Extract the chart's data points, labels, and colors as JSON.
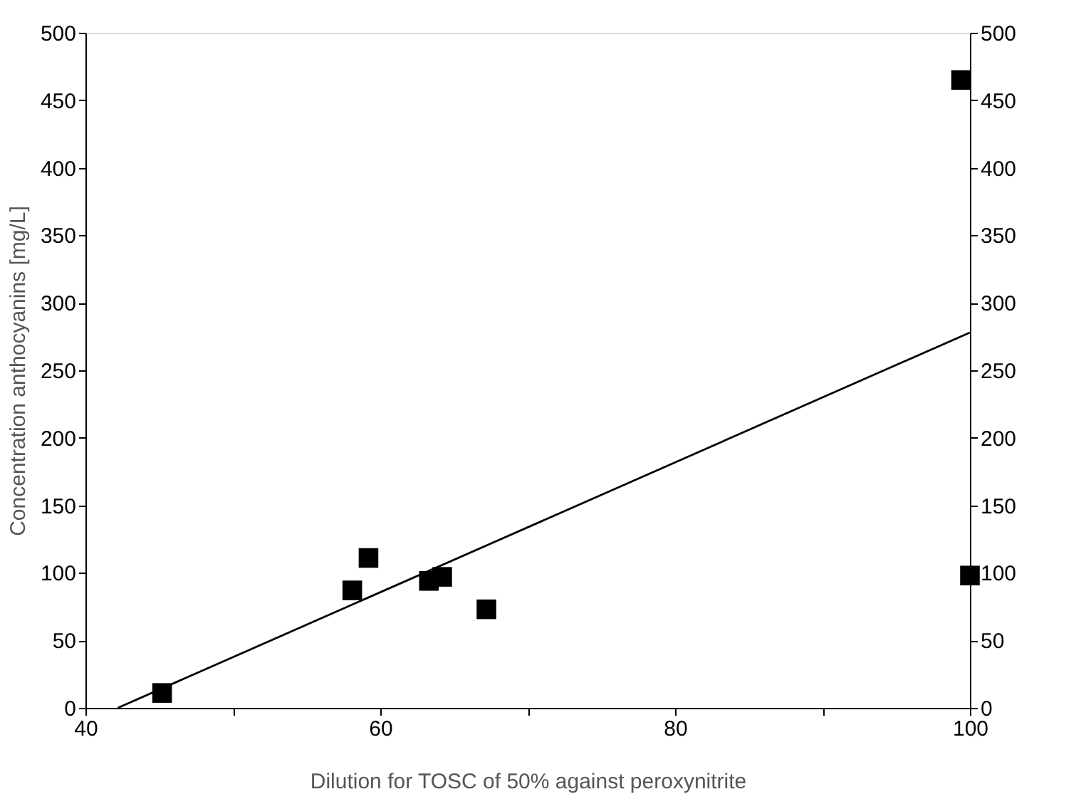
{
  "chart_data": {
    "type": "scatter",
    "xlabel": "Dilution for TOSC of 50% against peroxynitrite",
    "ylabel": "Concentration anthocyanins [mg/L]",
    "series": [
      {
        "color": "#000000",
        "marker": "square",
        "x": [
          45.2,
          58.1,
          59.2,
          63.3,
          64.2,
          67.2,
          99.4,
          100
        ],
        "values": [
          11,
          87,
          111,
          94,
          97,
          73,
          465,
          98
        ]
      },
      {
        "type": "line",
        "color": "#000000",
        "marker": "none",
        "line_style": "solid",
        "x": [
          42.2,
          100
        ],
        "values": [
          0,
          278
        ]
      }
    ],
    "xlim": [
      40,
      100
    ],
    "xticks": [
      40,
      {
        "value": 50,
        "label": null
      },
      60,
      {
        "value": 70,
        "label": null
      },
      80,
      {
        "value": 90,
        "label": null
      },
      100
    ],
    "ylim": [
      0,
      500
    ],
    "yticks": [
      0,
      50,
      100,
      150,
      200,
      250,
      300,
      350,
      400,
      450,
      500
    ],
    "y2lim": [
      0,
      500
    ],
    "y2ticks": [
      0,
      50,
      100,
      150,
      200,
      250,
      300,
      350,
      400,
      450,
      500
    ],
    "grid": false
  }
}
